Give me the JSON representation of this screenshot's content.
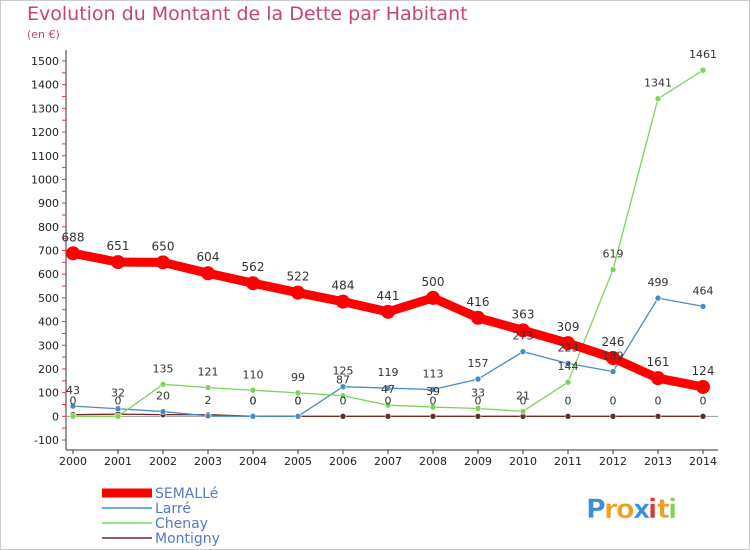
{
  "chart_data": {
    "type": "line",
    "title": "Evolution du Montant de la Dette par Habitant",
    "subtitle": "(en €)",
    "xlabel": "",
    "ylabel": "",
    "x": [
      "2000",
      "2001",
      "2002",
      "2003",
      "2004",
      "2005",
      "2006",
      "2007",
      "2008",
      "2009",
      "2010",
      "2011",
      "2012",
      "2013",
      "2014"
    ],
    "yticks": [
      "-100",
      "0",
      "100",
      "200",
      "300",
      "400",
      "500",
      "600",
      "700",
      "800",
      "900",
      "1000",
      "1100",
      "1200",
      "1300",
      "1400",
      "1500"
    ],
    "ylim": [
      -100,
      1500
    ],
    "grid": false,
    "legend": "bottom-left",
    "series": [
      {
        "name": "SEMALLé",
        "color": "#ff0000",
        "values": [
          688,
          651,
          650,
          604,
          562,
          522,
          484,
          441,
          500,
          416,
          363,
          309,
          246,
          161,
          124
        ]
      },
      {
        "name": "Larré",
        "color": "#4a8bc7",
        "values": [
          43,
          32,
          20,
          2,
          0,
          0,
          125,
          119,
          113,
          157,
          273,
          223,
          189,
          499,
          464
        ]
      },
      {
        "name": "Chenay",
        "color": "#7ed35e",
        "values": [
          0,
          0,
          135,
          121,
          110,
          99,
          87,
          47,
          39,
          33,
          21,
          144,
          619,
          1341,
          1461
        ]
      },
      {
        "name": "Montigny",
        "color": "#6b2a2a",
        "values": [
          7,
          9,
          7,
          7,
          0,
          0,
          0,
          0,
          0,
          0,
          0,
          0,
          0,
          0,
          0
        ]
      }
    ]
  },
  "logo": {
    "text": "Proxiti",
    "letter_colors": [
      "#3b8fd9",
      "#f0a020",
      "#f0a020",
      "#3b8fd9",
      "#e33333",
      "#f0a020",
      "#7ed35e"
    ]
  }
}
